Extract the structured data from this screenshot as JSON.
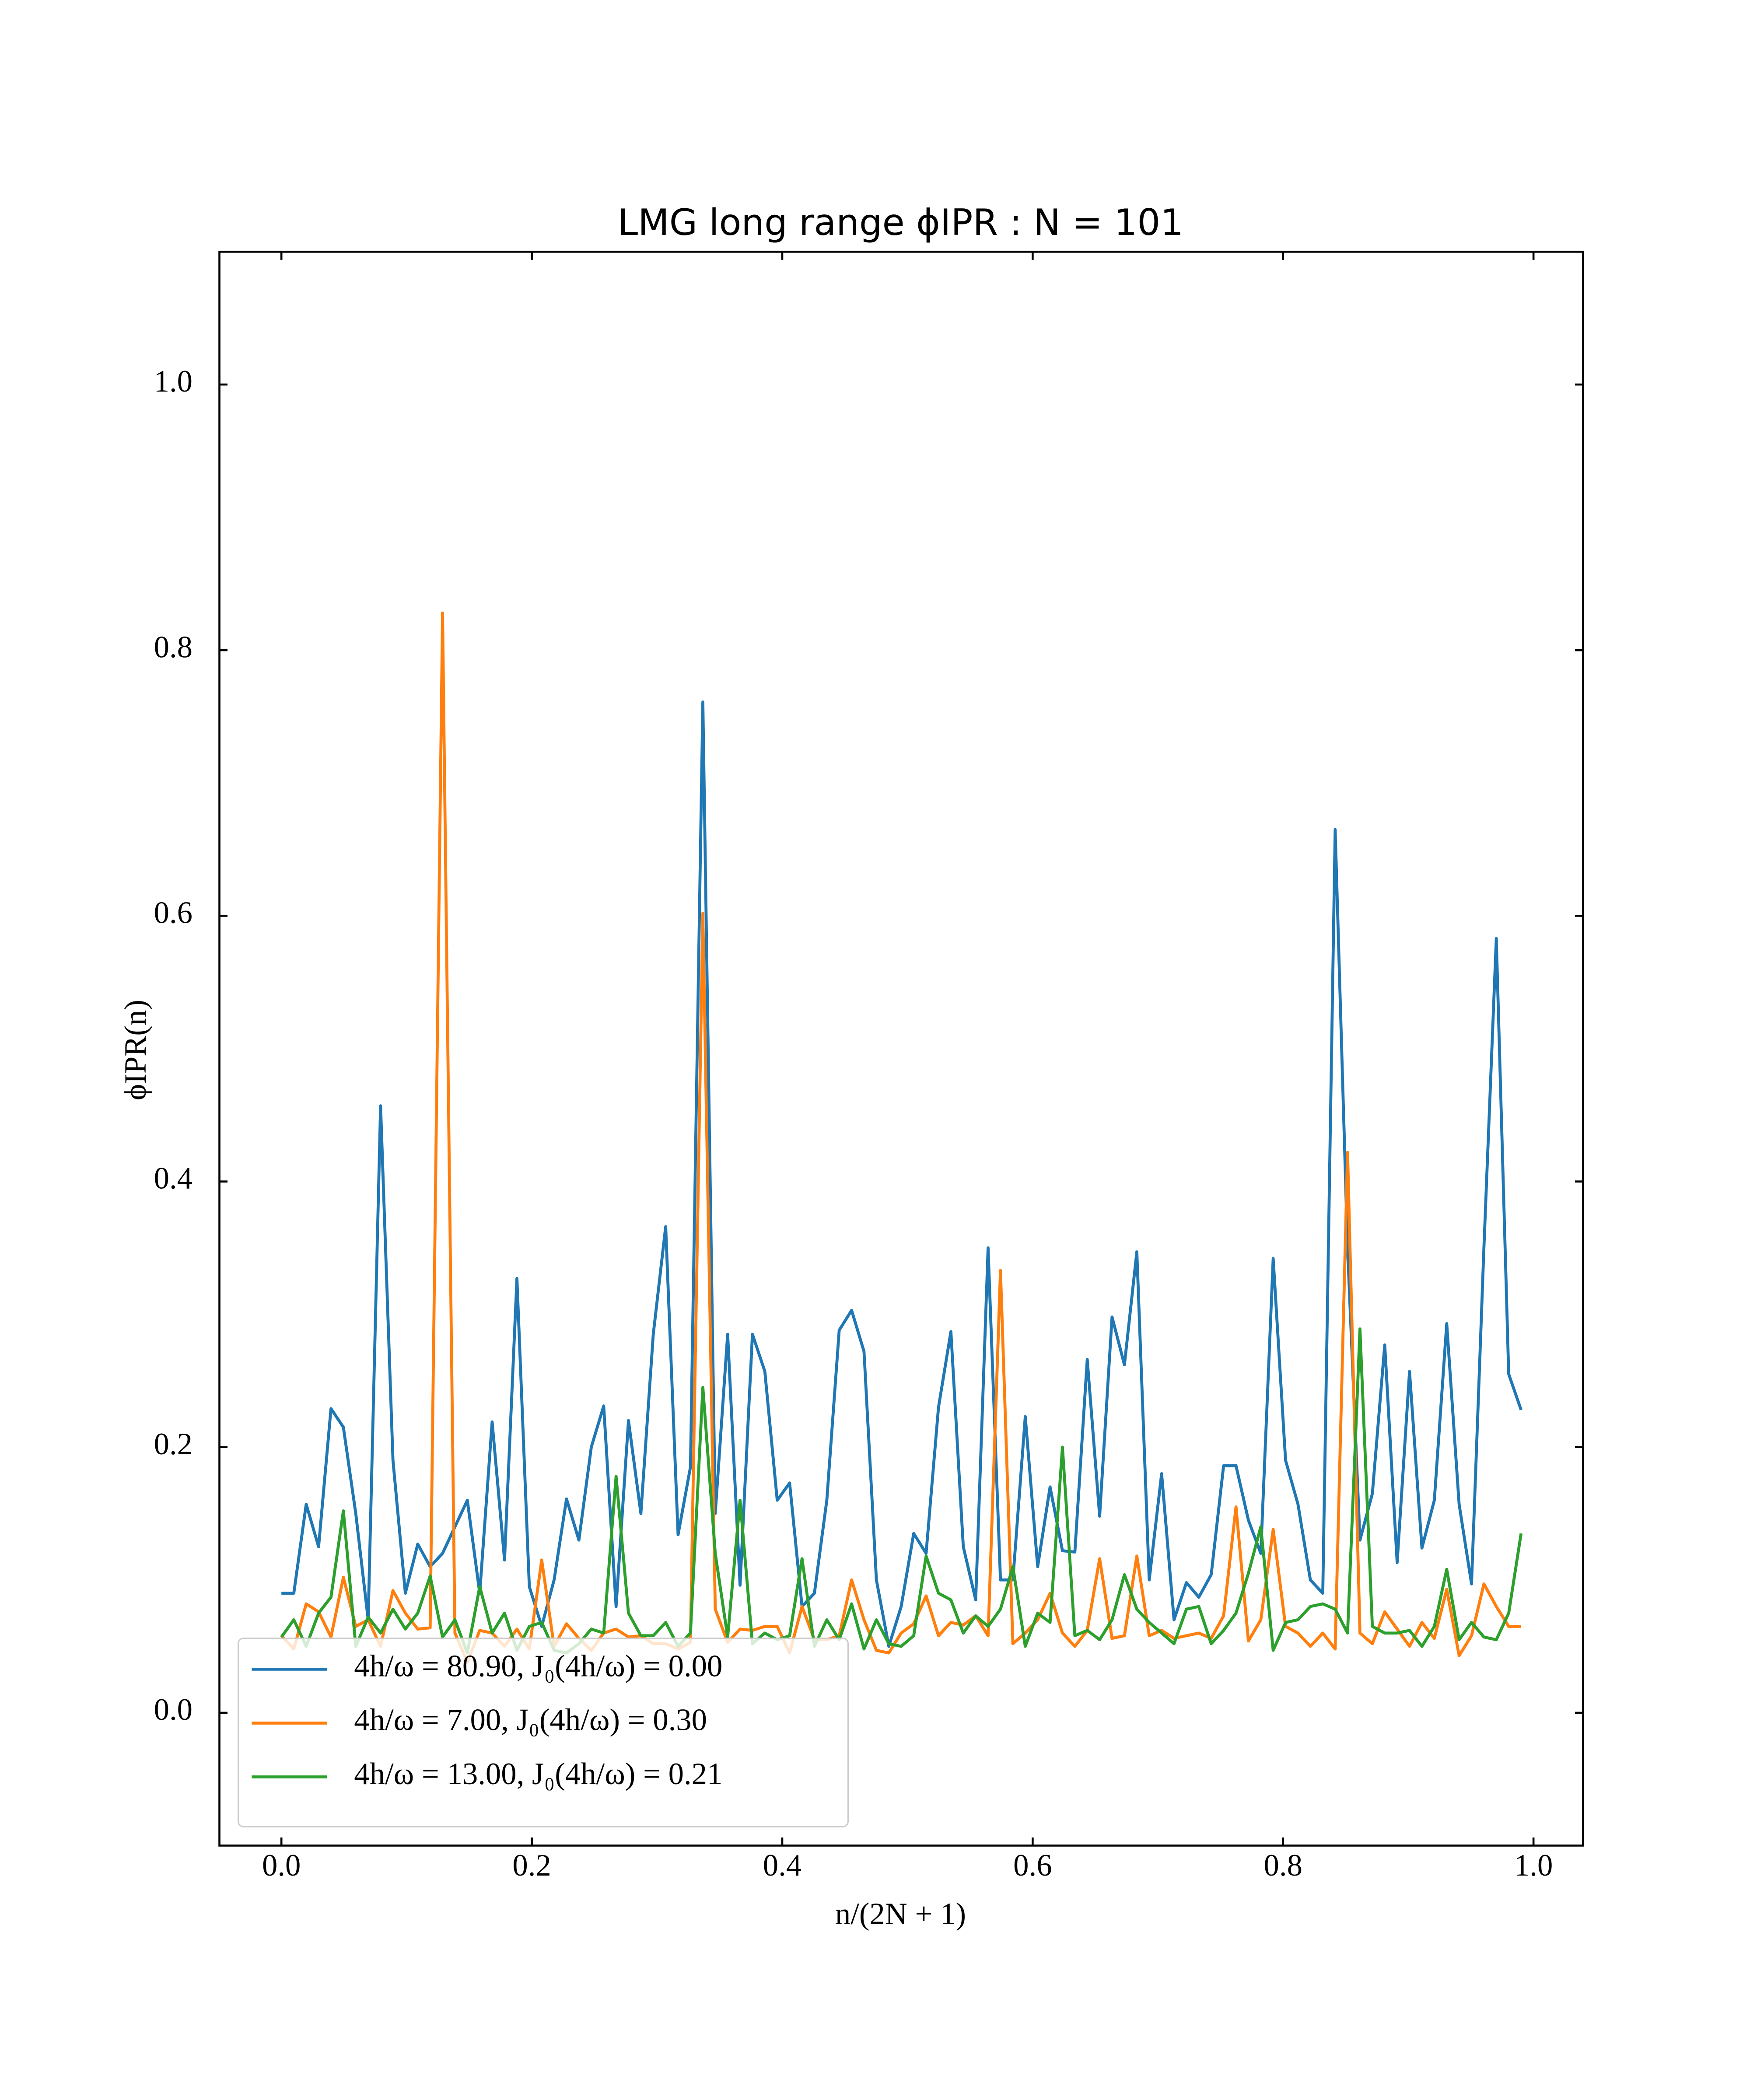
{
  "chart_data": {
    "type": "line",
    "title": "LMG long range ϕIPR : N = 101",
    "xlabel": "n/(2N + 1)",
    "ylabel": "ϕIPR(n)",
    "x": [
      0,
      0.0099,
      0.0198,
      0.0297,
      0.0396,
      0.0495,
      0.0594,
      0.0693,
      0.0792,
      0.0891,
      0.099,
      0.1089,
      0.1188,
      0.1287,
      0.1386,
      0.1485,
      0.1584,
      0.1683,
      0.1782,
      0.1881,
      0.198,
      0.2079,
      0.2178,
      0.2277,
      0.2376,
      0.2475,
      0.2574,
      0.2673,
      0.2772,
      0.2871,
      0.297,
      0.3069,
      0.3168,
      0.3267,
      0.3366,
      0.3465,
      0.3564,
      0.3663,
      0.3762,
      0.3861,
      0.396,
      0.4059,
      0.4158,
      0.4257,
      0.4356,
      0.4455,
      0.4554,
      0.4653,
      0.4752,
      0.4851,
      0.495,
      0.505,
      0.5149,
      0.5248,
      0.5347,
      0.5446,
      0.5545,
      0.5644,
      0.5743,
      0.5842,
      0.5941,
      0.604,
      0.6139,
      0.6238,
      0.6337,
      0.6436,
      0.6535,
      0.6634,
      0.6733,
      0.6832,
      0.6931,
      0.703,
      0.7129,
      0.7228,
      0.7327,
      0.7426,
      0.7525,
      0.7624,
      0.7723,
      0.7822,
      0.7921,
      0.802,
      0.8119,
      0.8218,
      0.8317,
      0.8416,
      0.8515,
      0.8614,
      0.8713,
      0.8812,
      0.8911,
      0.901,
      0.9109,
      0.9208,
      0.9307,
      0.9406,
      0.9505,
      0.9604,
      0.9703,
      0.9802,
      0.9901
    ],
    "series": [
      {
        "name": "4h/ω = 80.90, J₀(4h/ω) = 0.00",
        "color": "#1f77b4",
        "values": [
          0.09,
          0.09,
          0.157,
          0.125,
          0.229,
          0.215,
          0.15,
          0.07,
          0.457,
          0.19,
          0.09,
          0.127,
          0.11,
          0.12,
          0.14,
          0.16,
          0.09,
          0.219,
          0.115,
          0.327,
          0.095,
          0.065,
          0.1,
          0.161,
          0.13,
          0.2,
          0.231,
          0.08,
          0.22,
          0.15,
          0.285,
          0.366,
          0.134,
          0.185,
          0.761,
          0.15,
          0.285,
          0.096,
          0.285,
          0.257,
          0.16,
          0.173,
          0.08,
          0.09,
          0.16,
          0.288,
          0.303,
          0.272,
          0.1,
          0.05,
          0.08,
          0.135,
          0.12,
          0.23,
          0.287,
          0.125,
          0.085,
          0.35,
          0.1,
          0.1,
          0.223,
          0.11,
          0.17,
          0.122,
          0.121,
          0.266,
          0.148,
          0.298,
          0.262,
          0.347,
          0.1,
          0.18,
          0.07,
          0.098,
          0.087,
          0.104,
          0.186,
          0.186,
          0.145,
          0.12,
          0.342,
          0.19,
          0.157,
          0.1,
          0.09,
          0.665,
          0.35,
          0.13,
          0.165,
          0.277,
          0.113,
          0.257,
          0.124,
          0.16,
          0.293,
          0.157,
          0.097,
          0.35,
          0.583,
          0.255,
          0.228
        ]
      },
      {
        "name": "4h/ω = 7.00, J₀(4h/ω) = 0.30",
        "color": "#ff7f0e",
        "values": [
          0.058,
          0.048,
          0.082,
          0.076,
          0.057,
          0.102,
          0.065,
          0.07,
          0.05,
          0.092,
          0.075,
          0.063,
          0.064,
          0.828,
          0.06,
          0.038,
          0.062,
          0.06,
          0.05,
          0.063,
          0.048,
          0.115,
          0.05,
          0.067,
          0.056,
          0.047,
          0.06,
          0.063,
          0.057,
          0.058,
          0.052,
          0.052,
          0.048,
          0.053,
          0.602,
          0.078,
          0.053,
          0.063,
          0.062,
          0.065,
          0.065,
          0.045,
          0.08,
          0.055,
          0.055,
          0.058,
          0.1,
          0.07,
          0.047,
          0.045,
          0.06,
          0.067,
          0.088,
          0.058,
          0.068,
          0.066,
          0.073,
          0.058,
          0.333,
          0.052,
          0.06,
          0.07,
          0.09,
          0.06,
          0.05,
          0.062,
          0.116,
          0.056,
          0.058,
          0.118,
          0.058,
          0.062,
          0.056,
          0.058,
          0.06,
          0.056,
          0.073,
          0.155,
          0.054,
          0.07,
          0.138,
          0.065,
          0.06,
          0.05,
          0.06,
          0.048,
          0.422,
          0.06,
          0.052,
          0.076,
          0.063,
          0.05,
          0.068,
          0.056,
          0.093,
          0.043,
          0.058,
          0.097,
          0.08,
          0.065,
          0.065
        ]
      },
      {
        "name": "4h/ω = 13.00, J₀(4h/ω) = 0.21",
        "color": "#2ca02c",
        "values": [
          0.057,
          0.07,
          0.05,
          0.075,
          0.087,
          0.152,
          0.05,
          0.072,
          0.06,
          0.078,
          0.063,
          0.075,
          0.103,
          0.057,
          0.07,
          0.045,
          0.095,
          0.06,
          0.075,
          0.047,
          0.065,
          0.068,
          0.047,
          0.045,
          0.052,
          0.063,
          0.06,
          0.178,
          0.075,
          0.058,
          0.058,
          0.068,
          0.05,
          0.06,
          0.245,
          0.12,
          0.057,
          0.16,
          0.052,
          0.06,
          0.055,
          0.058,
          0.116,
          0.05,
          0.07,
          0.055,
          0.082,
          0.048,
          0.07,
          0.052,
          0.05,
          0.058,
          0.118,
          0.09,
          0.085,
          0.06,
          0.073,
          0.065,
          0.078,
          0.11,
          0.05,
          0.075,
          0.068,
          0.2,
          0.058,
          0.062,
          0.055,
          0.07,
          0.104,
          0.078,
          0.068,
          0.06,
          0.052,
          0.078,
          0.08,
          0.052,
          0.062,
          0.075,
          0.105,
          0.14,
          0.047,
          0.068,
          0.07,
          0.08,
          0.082,
          0.078,
          0.06,
          0.289,
          0.065,
          0.06,
          0.06,
          0.062,
          0.05,
          0.065,
          0.108,
          0.055,
          0.068,
          0.057,
          0.055,
          0.075,
          0.135
        ]
      }
    ],
    "xlim": [
      -0.0495,
      1.0396
    ],
    "ylim": [
      -0.1,
      1.1
    ],
    "xticks": [
      {
        "value": 0,
        "label": "0.0"
      },
      0.2,
      0.4,
      0.6,
      0.8,
      {
        "value": 1,
        "label": "1.0"
      }
    ],
    "yticks": [
      {
        "value": 0,
        "label": "0.0"
      },
      0.2,
      0.4,
      0.6,
      0.8,
      {
        "value": 1,
        "label": "1.0"
      }
    ],
    "grid": false,
    "legend": "lower left"
  }
}
